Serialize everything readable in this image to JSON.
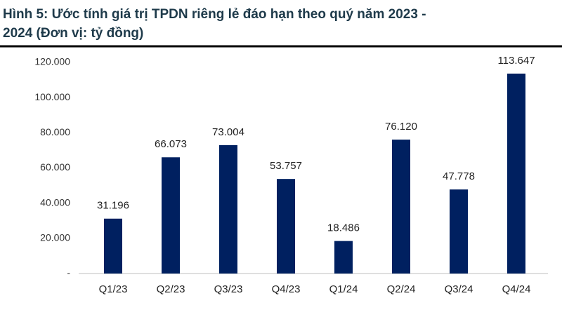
{
  "chart_data": {
    "type": "bar",
    "title": [
      "Hình 5: Ước tính giá trị TPDN riêng lẻ đáo hạn theo quý năm 2023 -",
      "2024 (Đơn vị: tỷ đồng)"
    ],
    "categories": [
      "Q1/23",
      "Q2/23",
      "Q3/23",
      "Q4/23",
      "Q1/24",
      "Q2/24",
      "Q3/24",
      "Q4/24"
    ],
    "values": [
      31196,
      66073,
      73004,
      53757,
      18486,
      76120,
      47778,
      113647
    ],
    "value_labels": [
      "31.196",
      "66.073",
      "73.004",
      "53.757",
      "18.486",
      "76.120",
      "47.778",
      "113.647"
    ],
    "color": "#002060",
    "ylim": [
      0,
      120000
    ],
    "yticks": [
      {
        "value": 0,
        "label": "-"
      },
      {
        "value": 20000,
        "label": "20.000"
      },
      {
        "value": 40000,
        "label": "40.000"
      },
      {
        "value": 60000,
        "label": "60.000"
      },
      {
        "value": 80000,
        "label": "80.000"
      },
      {
        "value": 100000,
        "label": "100.000"
      },
      {
        "value": 120000,
        "label": "120.000"
      }
    ],
    "grid": false
  }
}
